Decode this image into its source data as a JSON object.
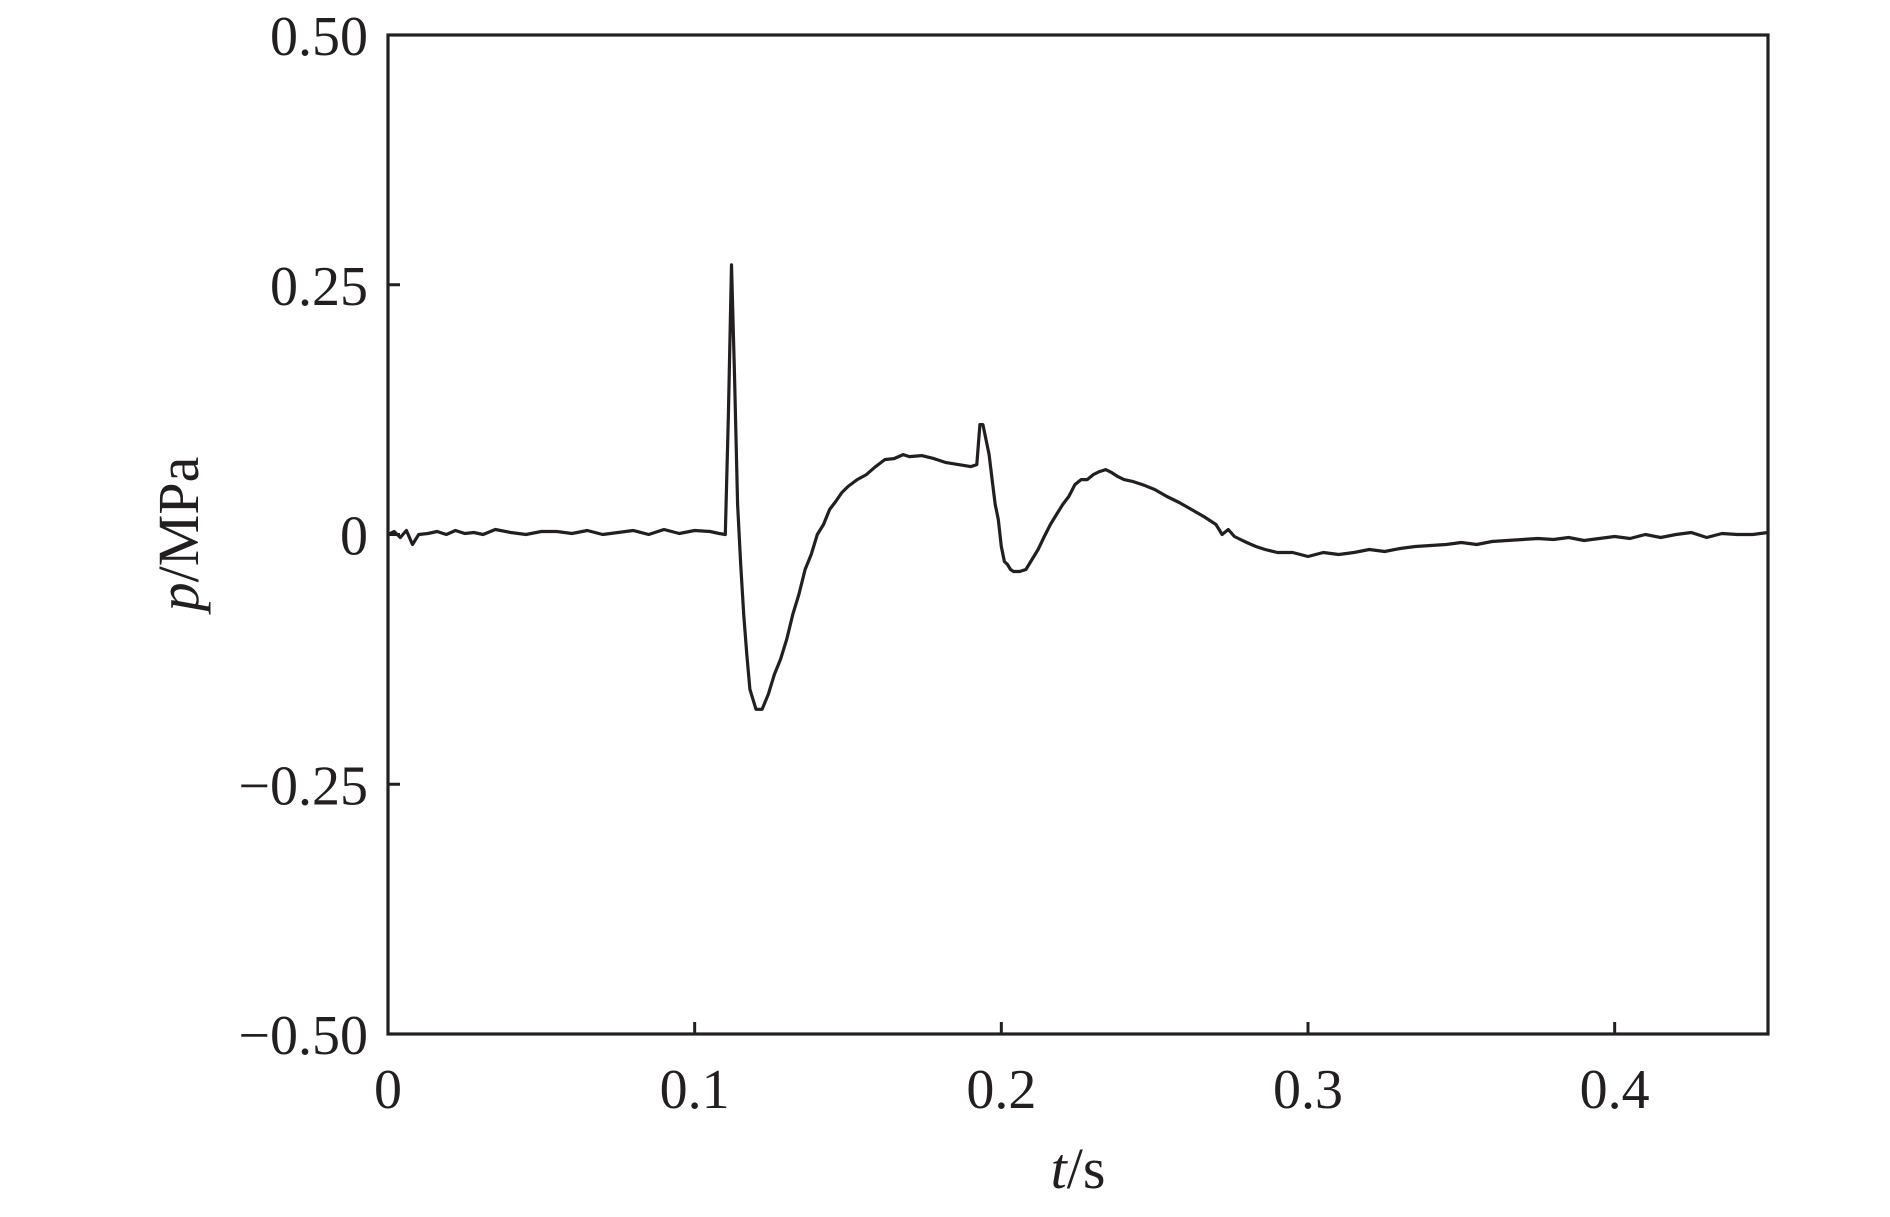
{
  "chart_data": {
    "type": "line",
    "title": "",
    "xlabel": {
      "var": "t",
      "unit": "/s"
    },
    "ylabel": {
      "var": "p",
      "unit": "/MPa"
    },
    "xlim": [
      0,
      0.45
    ],
    "ylim": [
      -0.5,
      0.5
    ],
    "xticks": [
      0,
      0.1,
      0.2,
      0.3,
      0.4
    ],
    "xtick_labels": [
      "0",
      "0.1",
      "0.2",
      "0.3",
      "0.4"
    ],
    "yticks": [
      -0.5,
      -0.25,
      0,
      0.25,
      0.5
    ],
    "ytick_labels": [
      "−0.50",
      "−0.25",
      "0",
      "0.25",
      "0.50"
    ],
    "grid": false,
    "legend": "none",
    "series": [
      {
        "color": "#231f20",
        "x": [
          0,
          0.002,
          0.004,
          0.006,
          0.008,
          0.01,
          0.013,
          0.016,
          0.019,
          0.022,
          0.025,
          0.028,
          0.031,
          0.035,
          0.04,
          0.045,
          0.05,
          0.055,
          0.06,
          0.065,
          0.07,
          0.075,
          0.08,
          0.085,
          0.09,
          0.095,
          0.1,
          0.105,
          0.108,
          0.11,
          0.111,
          0.112,
          0.113,
          0.114,
          0.115,
          0.116,
          0.117,
          0.118,
          0.12,
          0.122,
          0.124,
          0.126,
          0.128,
          0.13,
          0.132,
          0.134,
          0.136,
          0.138,
          0.14,
          0.142,
          0.144,
          0.146,
          0.148,
          0.15,
          0.153,
          0.156,
          0.159,
          0.162,
          0.165,
          0.168,
          0.17,
          0.174,
          0.178,
          0.182,
          0.186,
          0.19,
          0.192,
          0.193,
          0.194,
          0.195,
          0.196,
          0.197,
          0.198,
          0.199,
          0.2,
          0.201,
          0.202,
          0.203,
          0.204,
          0.206,
          0.208,
          0.21,
          0.212,
          0.214,
          0.216,
          0.218,
          0.22,
          0.222,
          0.224,
          0.226,
          0.228,
          0.23,
          0.232,
          0.234,
          0.236,
          0.238,
          0.24,
          0.243,
          0.246,
          0.25,
          0.254,
          0.258,
          0.262,
          0.266,
          0.27,
          0.272,
          0.274,
          0.276,
          0.278,
          0.28,
          0.283,
          0.286,
          0.29,
          0.295,
          0.3,
          0.305,
          0.31,
          0.315,
          0.32,
          0.325,
          0.33,
          0.335,
          0.34,
          0.345,
          0.35,
          0.355,
          0.36,
          0.365,
          0.37,
          0.375,
          0.38,
          0.385,
          0.39,
          0.395,
          0.4,
          0.405,
          0.41,
          0.415,
          0.42,
          0.425,
          0.43,
          0.435,
          0.44,
          0.445,
          0.45
        ],
        "y": [
          0.0,
          0.003,
          -0.003,
          0.004,
          -0.01,
          0.0,
          0.001,
          0.003,
          0.0,
          0.004,
          0.001,
          0.002,
          0.0,
          0.005,
          0.002,
          0.0,
          0.003,
          0.003,
          0.001,
          0.004,
          0.0,
          0.002,
          0.004,
          0.0,
          0.005,
          0.001,
          0.004,
          0.003,
          0.001,
          0.0,
          0.12,
          0.27,
          0.16,
          0.03,
          -0.03,
          -0.08,
          -0.12,
          -0.155,
          -0.175,
          -0.175,
          -0.16,
          -0.14,
          -0.125,
          -0.105,
          -0.08,
          -0.06,
          -0.035,
          -0.02,
          0.0,
          0.01,
          0.025,
          0.033,
          0.042,
          0.048,
          0.055,
          0.06,
          0.068,
          0.075,
          0.076,
          0.08,
          0.078,
          0.079,
          0.076,
          0.072,
          0.07,
          0.068,
          0.07,
          0.11,
          0.11,
          0.095,
          0.08,
          0.055,
          0.03,
          0.015,
          -0.012,
          -0.027,
          -0.03,
          -0.035,
          -0.037,
          -0.037,
          -0.035,
          -0.025,
          -0.015,
          -0.002,
          0.01,
          0.02,
          0.03,
          0.038,
          0.05,
          0.055,
          0.055,
          0.06,
          0.063,
          0.065,
          0.062,
          0.058,
          0.055,
          0.053,
          0.05,
          0.045,
          0.038,
          0.032,
          0.025,
          0.018,
          0.01,
          0.0,
          0.005,
          -0.002,
          -0.005,
          -0.008,
          -0.012,
          -0.015,
          -0.018,
          -0.018,
          -0.022,
          -0.018,
          -0.02,
          -0.018,
          -0.015,
          -0.017,
          -0.014,
          -0.012,
          -0.011,
          -0.01,
          -0.008,
          -0.01,
          -0.007,
          -0.006,
          -0.005,
          -0.004,
          -0.005,
          -0.003,
          -0.006,
          -0.004,
          -0.002,
          -0.004,
          0.0,
          -0.003,
          0.0,
          0.002,
          -0.003,
          0.001,
          0.0,
          0.0,
          0.002
        ]
      }
    ]
  }
}
